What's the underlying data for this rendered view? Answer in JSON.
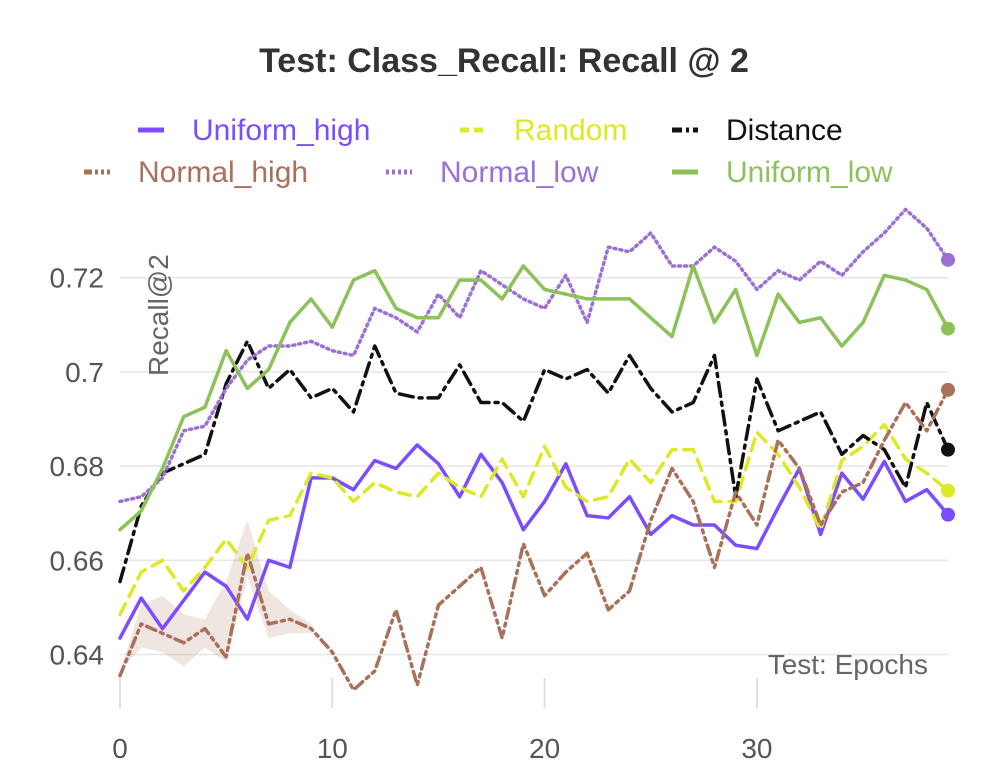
{
  "chart_data": {
    "type": "line",
    "title": "Test: Class_Recall: Recall @ 2",
    "xlabel": "Test: Epochs",
    "ylabel": "Recall@2",
    "xlim": [
      0,
      39
    ],
    "ylim": [
      0.6295,
      0.7365
    ],
    "xticks": [
      0,
      10,
      20,
      30
    ],
    "yticks": [
      0.64,
      0.66,
      0.68,
      0.7,
      0.72
    ],
    "ytick_labels": [
      "0.64",
      "0.66",
      "0.68",
      "0.7",
      "0.72"
    ],
    "grid": true,
    "legend_position": "top",
    "series": [
      {
        "name": "Uniform_high",
        "color": "#7c4dff",
        "dash": "",
        "width": 3.5,
        "values": [
          0.6435,
          0.652,
          0.6455,
          0.6515,
          0.6575,
          0.6545,
          0.6475,
          0.66,
          0.6585,
          0.6775,
          0.6775,
          0.675,
          0.6812,
          0.6795,
          0.6845,
          0.6805,
          0.6735,
          0.6825,
          0.6765,
          0.6665,
          0.6725,
          0.6805,
          0.6695,
          0.669,
          0.6735,
          0.6655,
          0.6695,
          0.6675,
          0.6675,
          0.6632,
          0.6625,
          0.6712,
          0.6795,
          0.6655,
          0.6785,
          0.673,
          0.681,
          0.6725,
          0.675,
          0.6697
        ]
      },
      {
        "name": "Random",
        "color": "#dfe824",
        "dash": "12,8",
        "width": 3.5,
        "values": [
          0.6485,
          0.6575,
          0.66,
          0.6535,
          0.6585,
          0.6645,
          0.6585,
          0.6685,
          0.6695,
          0.6785,
          0.6775,
          0.6725,
          0.6765,
          0.6745,
          0.6735,
          0.6785,
          0.6755,
          0.6735,
          0.6815,
          0.6735,
          0.6842,
          0.6755,
          0.6725,
          0.6735,
          0.6815,
          0.6765,
          0.6835,
          0.6835,
          0.6725,
          0.6725,
          0.6872,
          0.6825,
          0.6755,
          0.6665,
          0.6812,
          0.6842,
          0.6888,
          0.6815,
          0.6785,
          0.6748
        ]
      },
      {
        "name": "Distance",
        "color": "#111111",
        "dash": "14,6,3,6",
        "width": 3.5,
        "values": [
          0.6555,
          0.6715,
          0.6785,
          0.6805,
          0.6825,
          0.6975,
          0.7065,
          0.6965,
          0.7005,
          0.6945,
          0.6965,
          0.6915,
          0.7055,
          0.6955,
          0.6945,
          0.6945,
          0.7015,
          0.6935,
          0.6935,
          0.6895,
          0.7005,
          0.6985,
          0.7005,
          0.6955,
          0.7035,
          0.6965,
          0.6915,
          0.6935,
          0.7035,
          0.6735,
          0.6985,
          0.6875,
          0.6895,
          0.6915,
          0.6825,
          0.6865,
          0.6835,
          0.6755,
          0.6935,
          0.6835
        ]
      },
      {
        "name": "Normal_high",
        "color": "#a9705a",
        "dash": "10,5,3,5,3,5",
        "width": 3.5,
        "band": [
          [
            0,
            0.6365,
            0.6365
          ],
          [
            1,
            0.6415,
            0.6505
          ],
          [
            2,
            0.6405,
            0.6525
          ],
          [
            3,
            0.6375,
            0.6485
          ],
          [
            4,
            0.6415,
            0.6475
          ],
          [
            5,
            0.6385,
            0.6555
          ],
          [
            6,
            0.6565,
            0.6685
          ],
          [
            7,
            0.6435,
            0.6535
          ],
          [
            8,
            0.6445,
            0.6495
          ],
          [
            9,
            0.6445,
            0.6465
          ]
        ],
        "values": [
          0.6355,
          0.6465,
          0.6445,
          0.6425,
          0.6455,
          0.6395,
          0.6615,
          0.6465,
          0.6475,
          0.6455,
          0.6405,
          0.6325,
          0.6365,
          0.6495,
          0.6335,
          0.6505,
          0.6545,
          0.6585,
          0.6435,
          0.6635,
          0.6525,
          0.6575,
          0.6615,
          0.6495,
          0.6535,
          0.6685,
          0.6795,
          0.6725,
          0.6585,
          0.6745,
          0.6675,
          0.6855,
          0.6795,
          0.6675,
          0.6745,
          0.6765,
          0.6855,
          0.6935,
          0.6875,
          0.6962
        ]
      },
      {
        "name": "Normal_low",
        "color": "#9b6fd6",
        "dash": "2,4",
        "width": 3.5,
        "values": [
          0.6725,
          0.6735,
          0.6775,
          0.6875,
          0.6885,
          0.6965,
          0.7025,
          0.7055,
          0.7055,
          0.7065,
          0.7045,
          0.7035,
          0.7135,
          0.7115,
          0.7085,
          0.7165,
          0.7115,
          0.7215,
          0.7185,
          0.7155,
          0.7135,
          0.7205,
          0.7105,
          0.7265,
          0.7255,
          0.7295,
          0.7225,
          0.7225,
          0.7265,
          0.7235,
          0.7175,
          0.7215,
          0.7195,
          0.7235,
          0.7205,
          0.7255,
          0.7295,
          0.7345,
          0.7305,
          0.7238
        ]
      },
      {
        "name": "Uniform_low",
        "color": "#8dc15a",
        "dash": "",
        "width": 3.5,
        "values": [
          0.6665,
          0.6705,
          0.6795,
          0.6905,
          0.6925,
          0.7045,
          0.6965,
          0.7005,
          0.7105,
          0.7155,
          0.7095,
          0.7195,
          0.7215,
          0.7135,
          0.7115,
          0.7115,
          0.7195,
          0.7195,
          0.7155,
          0.7225,
          0.7175,
          0.7165,
          0.7155,
          0.7155,
          0.7155,
          0.7115,
          0.7075,
          0.7225,
          0.7105,
          0.7175,
          0.7035,
          0.7165,
          0.7105,
          0.7115,
          0.7055,
          0.7105,
          0.7205,
          0.7195,
          0.7175,
          0.7092
        ]
      }
    ]
  }
}
